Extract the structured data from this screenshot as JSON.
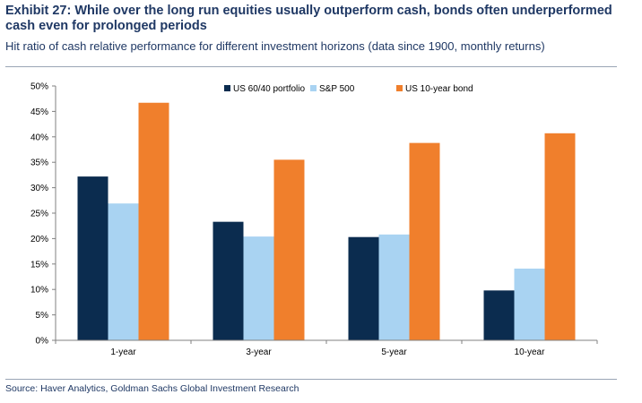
{
  "header": {
    "title": "Exhibit 27: While over the long run equities usually outperform cash, bonds often underperformed cash even for prolonged periods",
    "subtitle": "Hit ratio of cash relative performance for different investment horizons (data since 1900, monthly returns)"
  },
  "footer": {
    "source": "Source: Haver Analytics, Goldman Sachs Global Investment Research"
  },
  "chart_data": {
    "type": "bar",
    "categories": [
      "1-year",
      "3-year",
      "5-year",
      "10-year"
    ],
    "series": [
      {
        "name": "US 60/40 portfolio",
        "color": "#0b2c4f",
        "values": [
          32.2,
          23.3,
          20.3,
          9.8
        ]
      },
      {
        "name": "S&P 500",
        "color": "#a9d3f2",
        "values": [
          26.9,
          20.4,
          20.8,
          14.1
        ]
      },
      {
        "name": "US 10-year bond",
        "color": "#f07f2c",
        "values": [
          46.7,
          35.5,
          38.8,
          40.7
        ]
      }
    ],
    "ylim": [
      0,
      50
    ],
    "yticks": [
      0,
      5,
      10,
      15,
      20,
      25,
      30,
      35,
      40,
      45,
      50
    ],
    "ytick_format": "percent",
    "grid": false,
    "legend": "top"
  }
}
